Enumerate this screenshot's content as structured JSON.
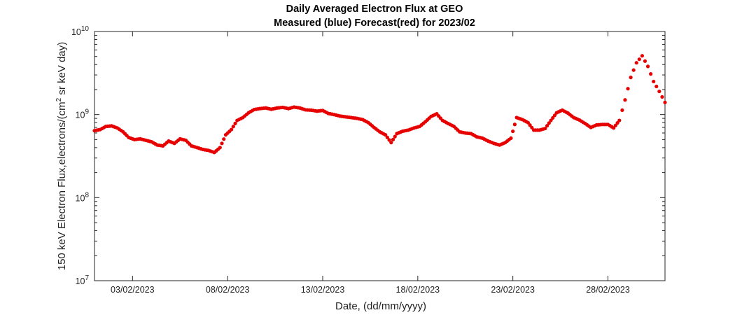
{
  "chart_data": {
    "type": "scatter",
    "title": "Daily Averaged Electron Flux at GEO",
    "subtitle": "Measured (blue) Forecast(red) for 2023/02",
    "xlabel": "Date, (dd/mm/yyyy)",
    "ylabel": {
      "prefix": "150 keV Electron Flux,electrons/(cm",
      "superscript": "2",
      "suffix": " sr keV day)"
    },
    "x_ticks": [
      "03/02/2023",
      "08/02/2023",
      "13/02/2023",
      "18/02/2023",
      "23/02/2023",
      "28/02/2023"
    ],
    "y_ticks": [
      {
        "base": "10",
        "exp": "7"
      },
      {
        "base": "10",
        "exp": "8"
      },
      {
        "base": "10",
        "exp": "9"
      },
      {
        "base": "10",
        "exp": "10"
      }
    ],
    "xlim_day": [
      1.0,
      31.0
    ],
    "ylim": [
      10000000.0,
      10000000000.0
    ],
    "y_scale": "log",
    "marker_color": "#e60000",
    "series": [
      {
        "x": [
          1.0,
          1.3,
          1.6,
          1.9,
          2.2,
          2.5,
          2.8,
          3.1,
          3.4,
          3.7,
          4.0,
          4.3,
          4.6,
          4.9,
          5.2,
          5.5,
          5.8,
          6.1,
          6.4,
          6.7,
          7.0,
          7.3,
          7.6,
          7.9,
          8.2,
          8.5,
          8.8,
          9.1,
          9.4,
          9.7,
          10.0,
          10.3,
          10.6,
          10.9,
          11.2,
          11.5,
          11.8,
          12.1,
          12.4,
          12.7,
          13.0,
          13.3,
          13.6,
          13.9,
          14.2,
          14.5,
          14.8,
          15.1,
          15.4,
          15.7,
          16.0,
          16.3,
          16.6,
          16.9,
          17.2,
          17.5,
          17.8,
          18.1,
          18.4,
          18.7,
          19.0,
          19.3,
          19.6,
          19.9,
          20.2,
          20.5,
          20.8,
          21.1,
          21.4,
          21.7,
          22.0,
          22.3,
          22.6,
          22.9,
          23.2,
          23.5,
          23.8,
          24.1,
          24.4,
          24.7,
          25.0,
          25.3,
          25.6,
          25.9,
          26.2,
          26.5,
          26.8,
          27.1,
          27.4,
          27.7,
          28.0,
          28.3,
          28.6,
          28.9,
          29.2,
          29.5,
          29.8,
          30.1,
          30.4,
          30.7,
          31.0
        ],
        "y": [
          640000000,
          660000000,
          720000000,
          730000000,
          690000000,
          620000000,
          530000000,
          500000000,
          510000000,
          490000000,
          470000000,
          430000000,
          420000000,
          480000000,
          450000000,
          510000000,
          490000000,
          420000000,
          400000000,
          380000000,
          370000000,
          350000000,
          400000000,
          570000000,
          660000000,
          850000000,
          920000000,
          1050000000,
          1150000000,
          1180000000,
          1200000000,
          1160000000,
          1200000000,
          1220000000,
          1180000000,
          1230000000,
          1200000000,
          1140000000,
          1130000000,
          1100000000,
          1120000000,
          1030000000,
          1000000000,
          960000000,
          940000000,
          920000000,
          900000000,
          870000000,
          800000000,
          700000000,
          620000000,
          570000000,
          460000000,
          590000000,
          630000000,
          650000000,
          690000000,
          720000000,
          820000000,
          950000000,
          1020000000,
          850000000,
          780000000,
          720000000,
          620000000,
          600000000,
          590000000,
          540000000,
          520000000,
          480000000,
          450000000,
          430000000,
          460000000,
          520000000,
          920000000,
          870000000,
          800000000,
          650000000,
          650000000,
          680000000,
          850000000,
          1050000000,
          1130000000,
          1040000000,
          920000000,
          860000000,
          780000000,
          700000000,
          750000000,
          760000000,
          760000000,
          690000000,
          850000000,
          1500000000,
          2800000000,
          4200000000,
          5100000000,
          3800000000,
          2500000000,
          1900000000,
          1400000000
        ]
      }
    ]
  }
}
